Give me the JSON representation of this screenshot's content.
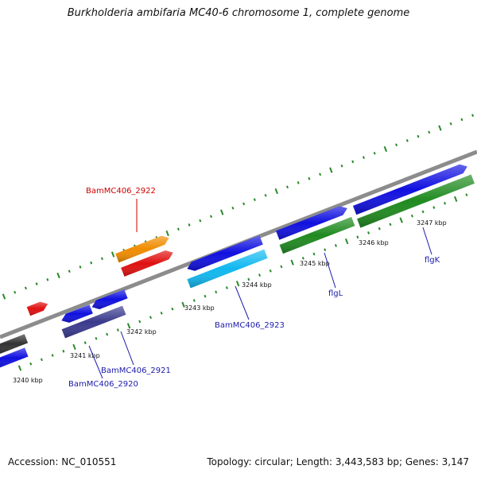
{
  "title": "Burkholderia ambifaria MC40-6 chromosome 1, complete genome",
  "footer": {
    "accession": "Accession: NC_010551",
    "stats": "Topology: circular; Length: 3,443,583 bp; Genes: 3,147"
  },
  "colors": {
    "backbone": "#8c8c8c",
    "ticks": "#2a8a2a",
    "label_red": "#cc0000",
    "label_blue": "#1a1aaa"
  },
  "scale": {
    "unit": "kbp",
    "labels": [
      "3240 kbp",
      "3241 kbp",
      "3242 kbp",
      "3243 kbp",
      "3244 kbp",
      "3245 kbp",
      "3246 kbp",
      "3247 kbp"
    ]
  },
  "features": [
    {
      "name": "gene-gray-left",
      "strand": "plus",
      "color": "#333333"
    },
    {
      "name": "gene-blue-left",
      "strand": "plus",
      "color": "#1010e0"
    },
    {
      "name": "gene-red-small",
      "strand": "plus",
      "color": "#e01010"
    },
    {
      "name": "gene-blue-a",
      "strand": "minus",
      "color": "#1010e0"
    },
    {
      "name": "gene-blue-b",
      "strand": "minus",
      "color": "#1010e0"
    },
    {
      "name": "gene-purple",
      "strand": "minus",
      "color": "#3a3a8e"
    },
    {
      "name": "gene-orange",
      "strand": "plus",
      "color": "#f08c00"
    },
    {
      "name": "gene-red",
      "strand": "plus",
      "color": "#e01010"
    },
    {
      "name": "gene-blue-c",
      "strand": "minus",
      "color": "#1010e0"
    },
    {
      "name": "gene-cyan",
      "strand": "minus",
      "color": "#10b8f0"
    },
    {
      "name": "gene-blue-d",
      "strand": "plus",
      "color": "#1010e0"
    },
    {
      "name": "gene-green-a",
      "strand": "plus",
      "color": "#1f8a1f"
    },
    {
      "name": "gene-blue-e",
      "strand": "plus",
      "color": "#1010e0"
    },
    {
      "name": "gene-green-b",
      "strand": "plus",
      "color": "#1f8a1f"
    }
  ],
  "gene_labels": [
    {
      "text": "BamMC406_2922",
      "color": "#cc0000"
    },
    {
      "text": "BamMC406_2923",
      "color": "#1a1aaa"
    },
    {
      "text": "BamMC406_2921",
      "color": "#1a1aaa"
    },
    {
      "text": "BamMC406_2920",
      "color": "#1a1aaa"
    },
    {
      "text": "flgL",
      "color": "#1a1aaa"
    },
    {
      "text": "flgK",
      "color": "#1a1aaa"
    }
  ]
}
